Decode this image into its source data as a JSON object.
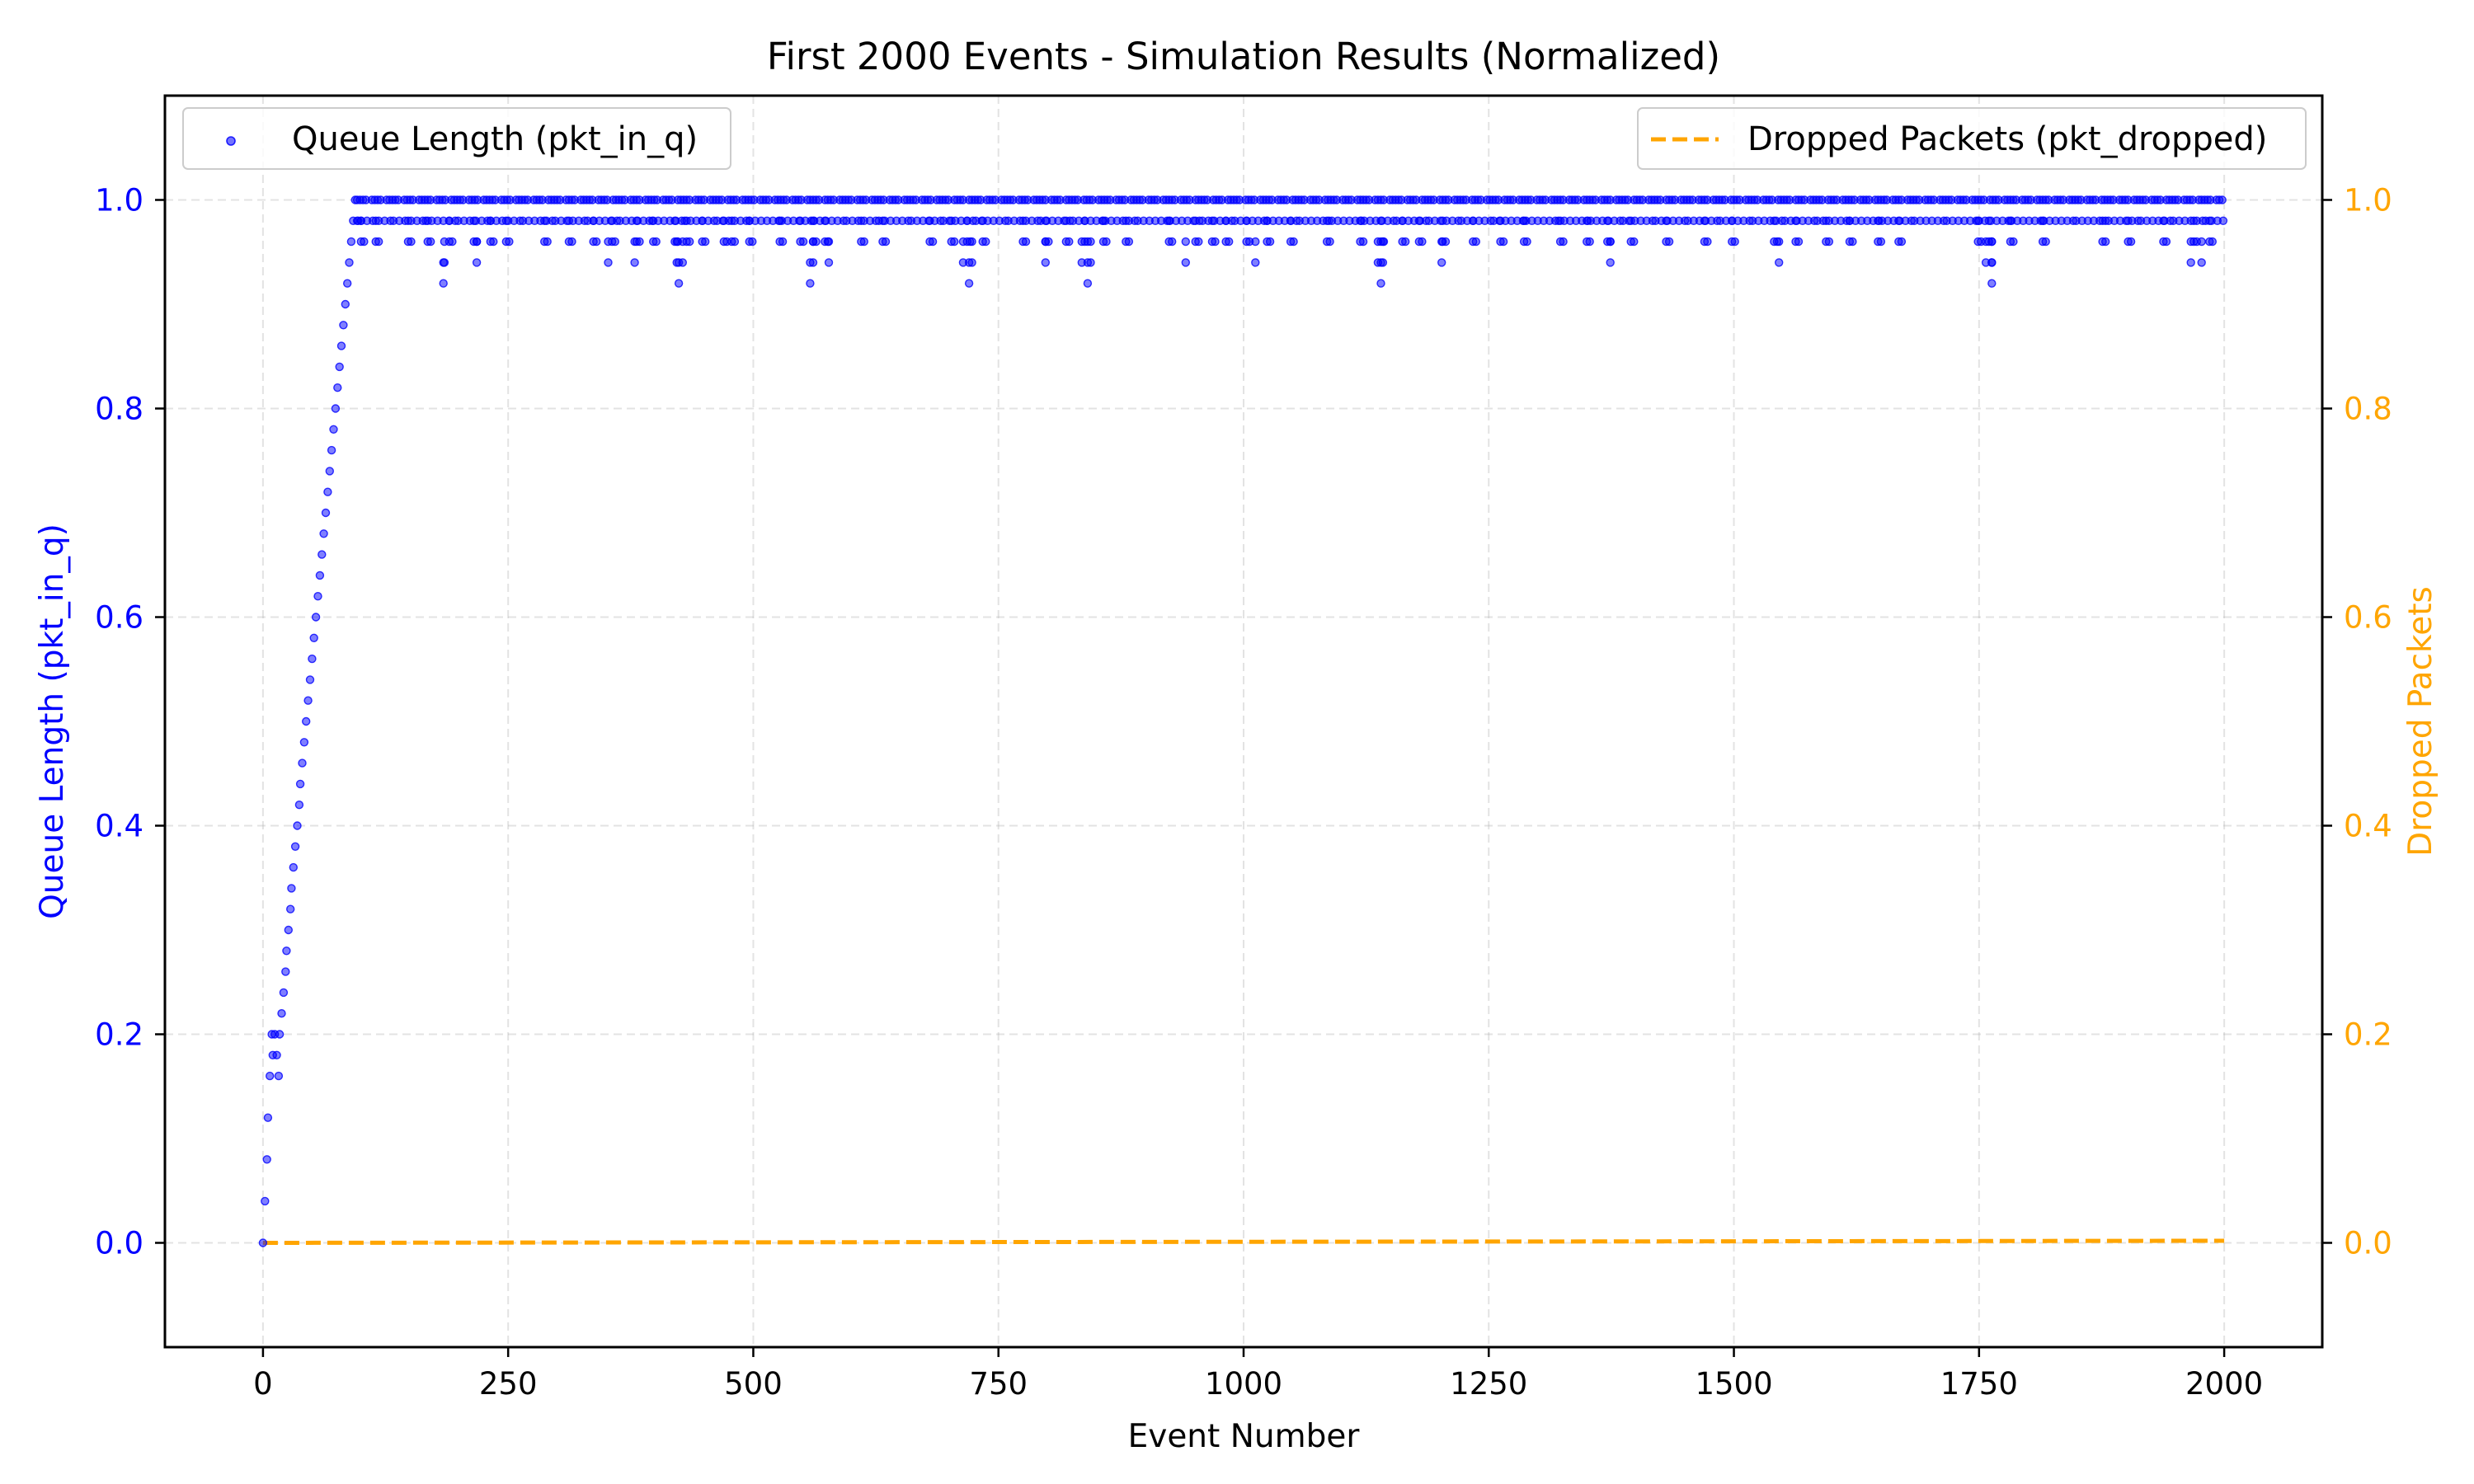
{
  "chart_data": {
    "type": "scatter",
    "title": "First 2000 Events - Simulation Results (Normalized)",
    "xlabel": "Event Number",
    "ylabel": "Queue Length (pkt_in_q)",
    "y2label": "Dropped Packets",
    "xlim": [
      -100,
      2100
    ],
    "ylim": [
      -0.1,
      1.1
    ],
    "y2lim": [
      -0.1,
      1.1
    ],
    "x_ticks": [
      0,
      250,
      500,
      750,
      1000,
      1250,
      1500,
      1750,
      2000
    ],
    "y_ticks": [
      0.0,
      0.2,
      0.4,
      0.6,
      0.8,
      1.0
    ],
    "grid": true,
    "colors": {
      "queue": "#0000ff",
      "dropped": "#ffa500"
    },
    "series": [
      {
        "name": "Queue Length (pkt_in_q)",
        "axis": "left",
        "kind": "scatter",
        "ramp_x": [
          0,
          2,
          4,
          5,
          7,
          9,
          10,
          12,
          14,
          16,
          17,
          19,
          21,
          23,
          24,
          26,
          28,
          29,
          31,
          33,
          35,
          37,
          38,
          40,
          42,
          44,
          46,
          48,
          50,
          52,
          54,
          56,
          58,
          60,
          62,
          64,
          66,
          68,
          70,
          72,
          74,
          76,
          78,
          80,
          82,
          84,
          86,
          88,
          90,
          92,
          94,
          96
        ],
        "ramp_y": [
          0.0,
          0.04,
          0.08,
          0.12,
          0.16,
          0.2,
          0.18,
          0.2,
          0.18,
          0.16,
          0.2,
          0.22,
          0.24,
          0.26,
          0.28,
          0.3,
          0.32,
          0.34,
          0.36,
          0.38,
          0.4,
          0.42,
          0.44,
          0.46,
          0.48,
          0.5,
          0.52,
          0.54,
          0.56,
          0.58,
          0.6,
          0.62,
          0.64,
          0.66,
          0.68,
          0.7,
          0.72,
          0.74,
          0.76,
          0.78,
          0.8,
          0.82,
          0.84,
          0.86,
          0.88,
          0.9,
          0.92,
          0.94,
          0.96,
          0.98,
          1.0,
          0.98
        ],
        "steady_start": 96,
        "steady_end": 2000,
        "steady_range": [
          0.92,
          1.0
        ],
        "dips_0_96": [
          100,
          115,
          148,
          168,
          190,
          215,
          232,
          248,
          287,
          312,
          337,
          356,
          381,
          398,
          420,
          432,
          448,
          470,
          478,
          496,
          527,
          548,
          561,
          573,
          610,
          632,
          680,
          702,
          718,
          734,
          775,
          798,
          819,
          838,
          857,
          880,
          924,
          951,
          968,
          982,
          1003,
          1024,
          1048,
          1085,
          1119,
          1140,
          1162,
          1179,
          1203,
          1234,
          1262,
          1286,
          1323,
          1350,
          1371,
          1395,
          1431,
          1470,
          1498,
          1541,
          1563,
          1594,
          1618,
          1647,
          1668,
          1749,
          1760,
          1782,
          1815,
          1876,
          1902,
          1938,
          1969,
          1985
        ],
        "dips_0_94": [
          185,
          218,
          352,
          379,
          422,
          428,
          561,
          577,
          714,
          723,
          798,
          835,
          844,
          941,
          1012,
          1137,
          1142,
          1202,
          1374,
          1546,
          1757,
          1763,
          1966,
          1977
        ],
        "dips_0_92": [
          184,
          424,
          558,
          720,
          841,
          1140,
          1763
        ]
      },
      {
        "name": "Dropped Packets (pkt_dropped)",
        "axis": "right",
        "kind": "line-dashed",
        "x": [
          0,
          500,
          1000,
          1500,
          2000
        ],
        "y": [
          0.0,
          0.0005,
          0.001,
          0.0015,
          0.002
        ]
      }
    ]
  }
}
